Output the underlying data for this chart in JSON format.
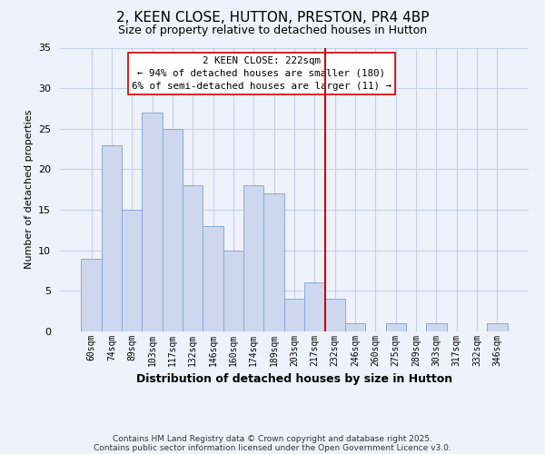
{
  "title": "2, KEEN CLOSE, HUTTON, PRESTON, PR4 4BP",
  "subtitle": "Size of property relative to detached houses in Hutton",
  "xlabel": "Distribution of detached houses by size in Hutton",
  "ylabel": "Number of detached properties",
  "bin_labels": [
    "60sqm",
    "74sqm",
    "89sqm",
    "103sqm",
    "117sqm",
    "132sqm",
    "146sqm",
    "160sqm",
    "174sqm",
    "189sqm",
    "203sqm",
    "217sqm",
    "232sqm",
    "246sqm",
    "260sqm",
    "275sqm",
    "289sqm",
    "303sqm",
    "317sqm",
    "332sqm",
    "346sqm"
  ],
  "bar_values": [
    9,
    23,
    15,
    27,
    25,
    18,
    13,
    10,
    18,
    17,
    4,
    6,
    4,
    1,
    0,
    1,
    0,
    1,
    0,
    0,
    1
  ],
  "bar_color": "#cdd8ee",
  "bar_edgecolor": "#8aaad4",
  "ylim": [
    0,
    35
  ],
  "yticks": [
    0,
    5,
    10,
    15,
    20,
    25,
    30,
    35
  ],
  "vline_x": 11.5,
  "vline_color": "#cc0000",
  "annotation_title": "2 KEEN CLOSE: 222sqm",
  "annotation_line1": "← 94% of detached houses are smaller (180)",
  "annotation_line2": "6% of semi-detached houses are larger (11) →",
  "grid_color": "#c5d0e8",
  "background_color": "#eef2fa",
  "footer1": "Contains HM Land Registry data © Crown copyright and database right 2025.",
  "footer2": "Contains public sector information licensed under the Open Government Licence v3.0."
}
